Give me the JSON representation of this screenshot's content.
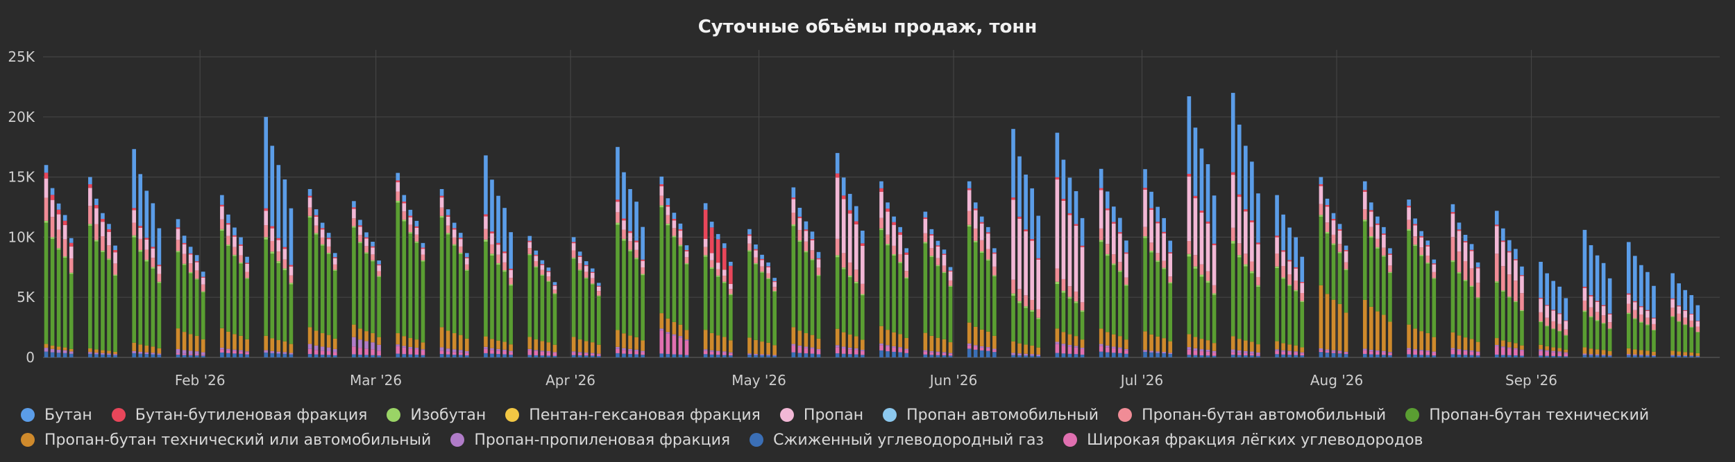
{
  "chart_data": {
    "type": "bar",
    "stacked": true,
    "title": "Суточные объёмы продаж, тонн",
    "xlabel": "",
    "ylabel": "",
    "ylim": [
      0,
      25000
    ],
    "y_ticks": [
      "0",
      "5K",
      "10K",
      "15K",
      "20K",
      "25K"
    ],
    "y_tick_values": [
      0,
      5000,
      10000,
      15000,
      20000,
      25000
    ],
    "x_tick_labels": [
      "Feb '26",
      "Mar '26",
      "Apr '26",
      "May '26",
      "Jun '26",
      "Jul '26",
      "Aug '26",
      "Sep '26"
    ],
    "x_start": "2026-01-07",
    "x_end": "2026-09-30",
    "grid": true,
    "legend_position": "bottom",
    "weekly_shape_pct": [
      100,
      88,
      80,
      74,
      62,
      0,
      0
    ],
    "week_start_dates": [
      "2026-01-07",
      "2026-01-14",
      "2026-01-21",
      "2026-01-28",
      "2026-02-04",
      "2026-02-11",
      "2026-02-18",
      "2026-02-25",
      "2026-03-04",
      "2026-03-11",
      "2026-03-18",
      "2026-03-25",
      "2026-04-01",
      "2026-04-08",
      "2026-04-15",
      "2026-04-22",
      "2026-04-29",
      "2026-05-06",
      "2026-05-13",
      "2026-05-20",
      "2026-05-27",
      "2026-06-03",
      "2026-06-10",
      "2026-06-17",
      "2026-06-24",
      "2026-07-01",
      "2026-07-08",
      "2026-07-15",
      "2026-07-22",
      "2026-07-29",
      "2026-08-05",
      "2026-08-12",
      "2026-08-19",
      "2026-08-26",
      "2026-09-02",
      "2026-09-09",
      "2026-09-16",
      "2026-09-23"
    ],
    "weekly_peak_total": [
      16000,
      15000,
      17500,
      11500,
      13500,
      20000,
      14000,
      13000,
      15500,
      14000,
      17500,
      10000,
      10000,
      17500,
      16000,
      13500,
      11000,
      14000,
      17000,
      14500,
      12000,
      14500,
      19000,
      18500,
      16000,
      15500,
      21500,
      22000,
      13500,
      15000,
      14500,
      13000,
      13000,
      11500,
      7500,
      10500,
      9500,
      7000
    ],
    "series": [
      {
        "name": "Бутан",
        "color": "#5b9de8",
        "weekly_share": [
          0.04,
          0.04,
          0.28,
          0.06,
          0.06,
          0.38,
          0.04,
          0.04,
          0.04,
          0.04,
          0.28,
          0.04,
          0.04,
          0.25,
          0.04,
          0.04,
          0.04,
          0.06,
          0.1,
          0.04,
          0.04,
          0.04,
          0.3,
          0.2,
          0.1,
          0.1,
          0.3,
          0.3,
          0.25,
          0.04,
          0.05,
          0.04,
          0.05,
          0.1,
          0.4,
          0.45,
          0.45,
          0.3
        ]
      },
      {
        "name": "Бутан-бутиленовая фракция",
        "color": "#e8465a",
        "weekly_share": [
          0.03,
          0.02,
          0.01,
          0.01,
          0.01,
          0.01,
          0.01,
          0.01,
          0.01,
          0.01,
          0.01,
          0.01,
          0.01,
          0.01,
          0.01,
          0.18,
          0.01,
          0.01,
          0.02,
          0.02,
          0.01,
          0.01,
          0.01,
          0.01,
          0.01,
          0.01,
          0.01,
          0.01,
          0.01,
          0.01,
          0.01,
          0.01,
          0.01,
          0.01,
          0.01,
          0.01,
          0.01,
          0.01
        ]
      },
      {
        "name": "Изобутан",
        "color": "#9ad466",
        "weekly_share": [
          0.01,
          0.01,
          0.01,
          0.01,
          0.01,
          0.01,
          0.01,
          0.01,
          0.01,
          0.01,
          0.01,
          0.01,
          0.01,
          0.01,
          0.01,
          0.01,
          0.01,
          0.01,
          0.01,
          0.01,
          0.01,
          0.01,
          0.01,
          0.01,
          0.01,
          0.01,
          0.01,
          0.01,
          0.01,
          0.01,
          0.01,
          0.01,
          0.01,
          0.01,
          0.01,
          0.01,
          0.01,
          0.01
        ]
      },
      {
        "name": "Пентан-гексановая фракция",
        "color": "#f2c744",
        "weekly_share": [
          0,
          0,
          0,
          0,
          0,
          0,
          0,
          0,
          0,
          0,
          0,
          0,
          0,
          0,
          0,
          0,
          0,
          0,
          0,
          0,
          0,
          0,
          0,
          0,
          0,
          0,
          0,
          0,
          0,
          0,
          0,
          0,
          0,
          0,
          0,
          0,
          0,
          0
        ]
      },
      {
        "name": "Пропан",
        "color": "#f2b8d6",
        "weekly_share": [
          0.1,
          0.1,
          0.06,
          0.08,
          0.08,
          0.06,
          0.06,
          0.06,
          0.05,
          0.06,
          0.06,
          0.05,
          0.06,
          0.05,
          0.05,
          0.05,
          0.06,
          0.08,
          0.3,
          0.15,
          0.1,
          0.12,
          0.35,
          0.4,
          0.2,
          0.2,
          0.25,
          0.2,
          0.1,
          0.1,
          0.1,
          0.08,
          0.15,
          0.2,
          0.15,
          0.1,
          0.08,
          0.1
        ]
      },
      {
        "name": "Пропан автомобильный",
        "color": "#8cc8ee",
        "weekly_share": [
          0,
          0,
          0,
          0,
          0,
          0,
          0,
          0,
          0,
          0,
          0,
          0,
          0,
          0,
          0,
          0,
          0,
          0,
          0,
          0,
          0,
          0,
          0,
          0,
          0,
          0,
          0,
          0,
          0,
          0,
          0,
          0,
          0,
          0,
          0,
          0,
          0,
          0
        ]
      },
      {
        "name": "Пропан-бутан автомобильный",
        "color": "#f08c96",
        "weekly_share": [
          0.12,
          0.1,
          0.06,
          0.08,
          0.06,
          0.05,
          0.05,
          0.05,
          0.05,
          0.05,
          0.05,
          0.05,
          0.06,
          0.05,
          0.05,
          0.05,
          0.05,
          0.07,
          0.08,
          0.06,
          0.06,
          0.08,
          0.06,
          0.06,
          0.06,
          0.05,
          0.05,
          0.05,
          0.08,
          0.06,
          0.06,
          0.06,
          0.15,
          0.2,
          0.1,
          0.08,
          0.08,
          0.1
        ]
      },
      {
        "name": "Пропан-бутан технический",
        "color": "#5a9e32",
        "weekly_share": [
          0.63,
          0.68,
          0.5,
          0.55,
          0.6,
          0.4,
          0.65,
          0.62,
          0.7,
          0.65,
          0.45,
          0.68,
          0.65,
          0.5,
          0.55,
          0.45,
          0.65,
          0.6,
          0.35,
          0.55,
          0.62,
          0.55,
          0.2,
          0.2,
          0.45,
          0.5,
          0.3,
          0.35,
          0.45,
          0.38,
          0.45,
          0.6,
          0.45,
          0.4,
          0.25,
          0.28,
          0.3,
          0.4
        ]
      },
      {
        "name": "Пропан-бутан технический или автомобильный",
        "color": "#cf8a2c",
        "weekly_share": [
          0.02,
          0.02,
          0.04,
          0.15,
          0.12,
          0.06,
          0.1,
          0.08,
          0.06,
          0.12,
          0.05,
          0.1,
          0.12,
          0.08,
          0.08,
          0.12,
          0.12,
          0.1,
          0.08,
          0.1,
          0.12,
          0.12,
          0.05,
          0.06,
          0.08,
          0.1,
          0.05,
          0.05,
          0.05,
          0.35,
          0.28,
          0.15,
          0.1,
          0.05,
          0.05,
          0.05,
          0.05,
          0.05
        ]
      },
      {
        "name": "Пропан-пропиленовая фракция",
        "color": "#b07cc8",
        "weekly_share": [
          0.02,
          0.01,
          0.01,
          0.03,
          0.01,
          0.01,
          0.03,
          0.06,
          0.01,
          0.02,
          0.01,
          0.01,
          0.01,
          0.01,
          0.01,
          0.01,
          0.01,
          0.01,
          0.01,
          0.01,
          0.01,
          0.01,
          0.01,
          0.01,
          0.01,
          0.01,
          0.01,
          0.01,
          0.01,
          0.01,
          0.01,
          0.01,
          0.01,
          0.01,
          0.02,
          0.01,
          0.01,
          0.01
        ]
      },
      {
        "name": "Сжиженный углеводородный газ",
        "color": "#3b6fb6",
        "weekly_share": [
          0.03,
          0.02,
          0.02,
          0.02,
          0.03,
          0.02,
          0.02,
          0.02,
          0.02,
          0.02,
          0.02,
          0.02,
          0.02,
          0.02,
          0.02,
          0.02,
          0.02,
          0.03,
          0.02,
          0.04,
          0.02,
          0.05,
          0.01,
          0.02,
          0.03,
          0.03,
          0.01,
          0.01,
          0.02,
          0.03,
          0.02,
          0.02,
          0.02,
          0.02,
          0.02,
          0.02,
          0.02,
          0.02
        ]
      },
      {
        "name": "Широкая фракция лёгких углеводородов",
        "color": "#e070b0",
        "weekly_share": [
          0.0,
          0.0,
          0.0,
          0.01,
          0.02,
          0.0,
          0.03,
          0.05,
          0.04,
          0.02,
          0.02,
          0.04,
          0.02,
          0.02,
          0.12,
          0.02,
          0.0,
          0.04,
          0.03,
          0.03,
          0.02,
          0.02,
          0.0,
          0.04,
          0.03,
          0.0,
          0.02,
          0.01,
          0.02,
          0.01,
          0.02,
          0.03,
          0.03,
          0.06,
          0.05,
          0.0,
          0.0,
          0.0
        ]
      }
    ]
  }
}
